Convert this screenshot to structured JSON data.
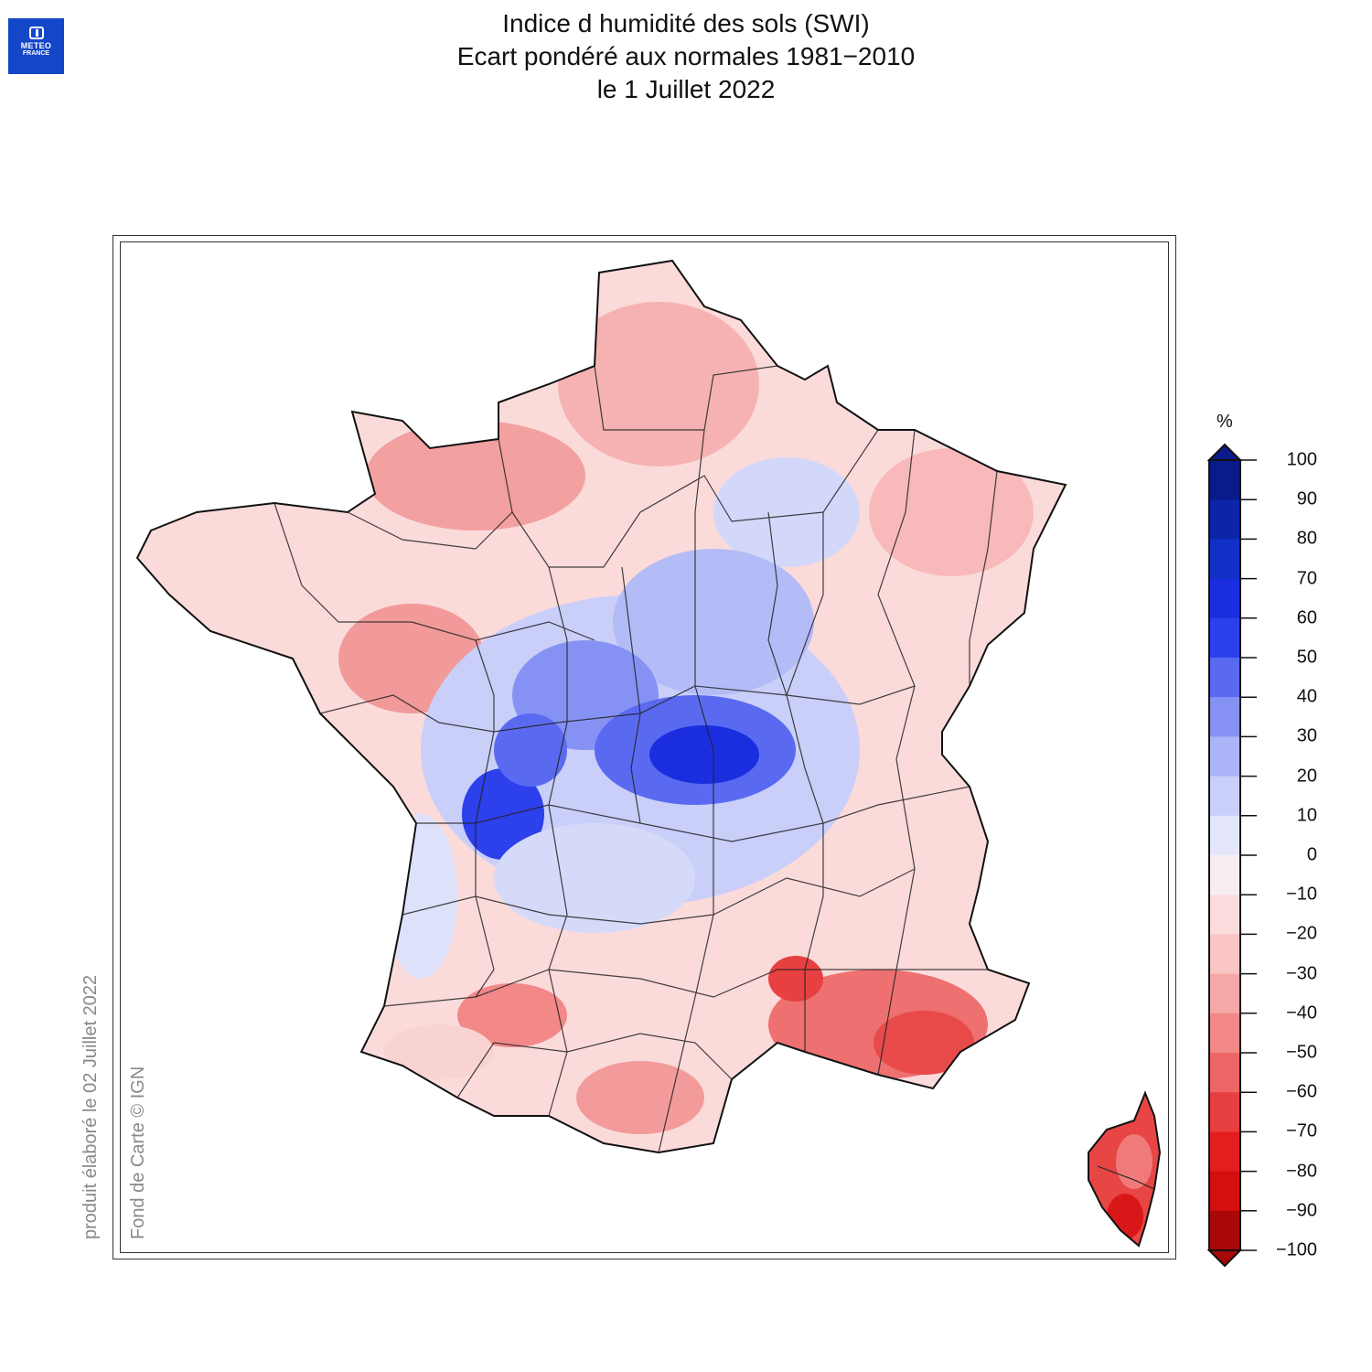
{
  "logo": {
    "line1": "METEO",
    "line2": "FRANCE"
  },
  "title": {
    "line1": "Indice d humidité des sols (SWI)",
    "line2": "Ecart pondéré aux normales 1981−2010",
    "line3": "le 1 Juillet 2022"
  },
  "footer": {
    "produced": "produit élaboré le 02 Juillet 2022",
    "basemap": "Fond de Carte © IGN"
  },
  "colorbar": {
    "unit": "%",
    "labels": [
      "100",
      "90",
      "80",
      "70",
      "60",
      "50",
      "40",
      "30",
      "20",
      "10",
      "0",
      "−10",
      "−20",
      "−30",
      "−40",
      "−50",
      "−60",
      "−70",
      "−80",
      "−90",
      "−100"
    ],
    "colors": [
      "#0a1a8a",
      "#0c24a8",
      "#1030c8",
      "#1a2ee0",
      "#2c40ec",
      "#5a6af0",
      "#8592f4",
      "#aab4f7",
      "#c9cff9",
      "#e4e7fb",
      "#f7eef2",
      "#fbdcdc",
      "#f9c5c5",
      "#f6a8a8",
      "#f28888",
      "#ee6565",
      "#e84040",
      "#e31e1e",
      "#d50f0f",
      "#a80808"
    ]
  }
}
